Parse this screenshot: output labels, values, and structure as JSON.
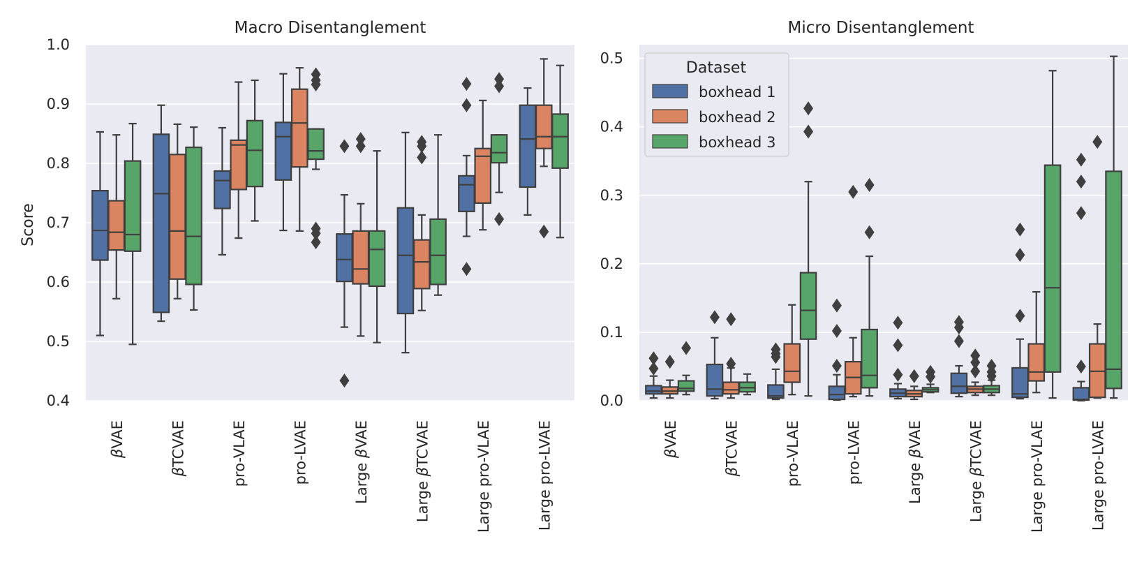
{
  "chart_data": [
    {
      "type": "box",
      "title": "Macro Disentanglement",
      "xlabel": "",
      "ylabel": "Score",
      "ylim": [
        0.4,
        1.0
      ],
      "yticks": [
        "0.4",
        "0.5",
        "0.6",
        "0.7",
        "0.8",
        "0.9",
        "1.0"
      ],
      "grid": true,
      "categories": [
        {
          "prefix": "",
          "greek": "β",
          "suffix": "VAE"
        },
        {
          "prefix": "",
          "greek": "β",
          "suffix": "TCVAE"
        },
        {
          "prefix": "pro-VLAE",
          "greek": "",
          "suffix": ""
        },
        {
          "prefix": "pro-LVAE",
          "greek": "",
          "suffix": ""
        },
        {
          "prefix": "Large ",
          "greek": "β",
          "suffix": "VAE"
        },
        {
          "prefix": "Large ",
          "greek": "β",
          "suffix": "TCVAE"
        },
        {
          "prefix": "Large pro-VLAE",
          "greek": "",
          "suffix": ""
        },
        {
          "prefix": "Large pro-LVAE",
          "greek": "",
          "suffix": ""
        }
      ],
      "series": [
        {
          "name": "boxhead 1",
          "boxes": [
            {
              "whislo": 0.51,
              "q1": 0.637,
              "med": 0.687,
              "q3": 0.754,
              "whishi": 0.853,
              "fliers": []
            },
            {
              "whislo": 0.534,
              "q1": 0.549,
              "med": 0.749,
              "q3": 0.849,
              "whishi": 0.898,
              "fliers": []
            },
            {
              "whislo": 0.646,
              "q1": 0.724,
              "med": 0.771,
              "q3": 0.787,
              "whishi": 0.86,
              "fliers": []
            },
            {
              "whislo": 0.687,
              "q1": 0.772,
              "med": 0.845,
              "q3": 0.869,
              "whishi": 0.951,
              "fliers": []
            },
            {
              "whislo": 0.524,
              "q1": 0.601,
              "med": 0.638,
              "q3": 0.681,
              "whishi": 0.747,
              "fliers": [
                0.829,
                0.434
              ]
            },
            {
              "whislo": 0.481,
              "q1": 0.547,
              "med": 0.645,
              "q3": 0.725,
              "whishi": 0.852,
              "fliers": []
            },
            {
              "whislo": 0.677,
              "q1": 0.719,
              "med": 0.764,
              "q3": 0.779,
              "whishi": 0.813,
              "fliers": [
                0.934,
                0.898,
                0.622
              ]
            },
            {
              "whislo": 0.713,
              "q1": 0.76,
              "med": 0.841,
              "q3": 0.898,
              "whishi": 0.927,
              "fliers": []
            }
          ]
        },
        {
          "name": "boxhead 2",
          "boxes": [
            {
              "whislo": 0.572,
              "q1": 0.654,
              "med": 0.684,
              "q3": 0.737,
              "whishi": 0.848,
              "fliers": []
            },
            {
              "whislo": 0.572,
              "q1": 0.605,
              "med": 0.686,
              "q3": 0.815,
              "whishi": 0.866,
              "fliers": []
            },
            {
              "whislo": 0.674,
              "q1": 0.756,
              "med": 0.831,
              "q3": 0.839,
              "whishi": 0.937,
              "fliers": []
            },
            {
              "whislo": 0.686,
              "q1": 0.794,
              "med": 0.868,
              "q3": 0.925,
              "whishi": 0.961,
              "fliers": []
            },
            {
              "whislo": 0.509,
              "q1": 0.597,
              "med": 0.622,
              "q3": 0.686,
              "whishi": 0.732,
              "fliers": [
                0.841,
                0.829
              ]
            },
            {
              "whislo": 0.552,
              "q1": 0.589,
              "med": 0.634,
              "q3": 0.671,
              "whishi": 0.713,
              "fliers": [
                0.836,
                0.829,
                0.81
              ]
            },
            {
              "whislo": 0.688,
              "q1": 0.733,
              "med": 0.812,
              "q3": 0.825,
              "whishi": 0.906,
              "fliers": []
            },
            {
              "whislo": 0.795,
              "q1": 0.825,
              "med": 0.845,
              "q3": 0.898,
              "whishi": 0.976,
              "fliers": [
                0.685
              ]
            }
          ]
        },
        {
          "name": "boxhead 3",
          "boxes": [
            {
              "whislo": 0.495,
              "q1": 0.652,
              "med": 0.68,
              "q3": 0.804,
              "whishi": 0.867,
              "fliers": []
            },
            {
              "whislo": 0.553,
              "q1": 0.596,
              "med": 0.677,
              "q3": 0.827,
              "whishi": 0.861,
              "fliers": []
            },
            {
              "whislo": 0.703,
              "q1": 0.761,
              "med": 0.822,
              "q3": 0.872,
              "whishi": 0.94,
              "fliers": []
            },
            {
              "whislo": 0.79,
              "q1": 0.807,
              "med": 0.821,
              "q3": 0.858,
              "whishi": 0.858,
              "fliers": [
                0.95,
                0.94,
                0.933,
                0.69,
                0.682,
                0.667
              ]
            },
            {
              "whislo": 0.498,
              "q1": 0.593,
              "med": 0.655,
              "q3": 0.686,
              "whishi": 0.821,
              "fliers": []
            },
            {
              "whislo": 0.578,
              "q1": 0.596,
              "med": 0.645,
              "q3": 0.706,
              "whishi": 0.848,
              "fliers": []
            },
            {
              "whislo": 0.751,
              "q1": 0.801,
              "med": 0.818,
              "q3": 0.848,
              "whishi": 0.848,
              "fliers": [
                0.942,
                0.93,
                0.706
              ]
            },
            {
              "whislo": 0.675,
              "q1": 0.792,
              "med": 0.845,
              "q3": 0.883,
              "whishi": 0.965,
              "fliers": []
            }
          ]
        }
      ]
    },
    {
      "type": "box",
      "title": "Micro Disentanglement",
      "xlabel": "",
      "ylabel": "",
      "ylim": [
        0.0,
        0.52
      ],
      "yticks": [
        "0.0",
        "0.1",
        "0.2",
        "0.3",
        "0.4",
        "0.5"
      ],
      "grid": true,
      "legend": {
        "title": "Dataset",
        "placement": "top-left"
      },
      "categories": [
        {
          "prefix": "",
          "greek": "β",
          "suffix": "VAE"
        },
        {
          "prefix": "",
          "greek": "β",
          "suffix": "TCVAE"
        },
        {
          "prefix": "pro-VLAE",
          "greek": "",
          "suffix": ""
        },
        {
          "prefix": "pro-LVAE",
          "greek": "",
          "suffix": ""
        },
        {
          "prefix": "Large ",
          "greek": "β",
          "suffix": "VAE"
        },
        {
          "prefix": "Large ",
          "greek": "β",
          "suffix": "TCVAE"
        },
        {
          "prefix": "Large pro-VLAE",
          "greek": "",
          "suffix": ""
        },
        {
          "prefix": "Large pro-LVAE",
          "greek": "",
          "suffix": ""
        }
      ],
      "series": [
        {
          "name": "boxhead 1",
          "boxes": [
            {
              "whislo": 0.004,
              "q1": 0.01,
              "med": 0.014,
              "q3": 0.022,
              "whishi": 0.036,
              "fliers": [
                0.062,
                0.047
              ]
            },
            {
              "whislo": 0.003,
              "q1": 0.007,
              "med": 0.017,
              "q3": 0.053,
              "whishi": 0.092,
              "fliers": [
                0.122
              ]
            },
            {
              "whislo": 0.002,
              "q1": 0.004,
              "med": 0.007,
              "q3": 0.023,
              "whishi": 0.046,
              "fliers": [
                0.075,
                0.069,
                0.064
              ]
            },
            {
              "whislo": 0.001,
              "q1": 0.002,
              "med": 0.009,
              "q3": 0.021,
              "whishi": 0.038,
              "fliers": [
                0.139,
                0.102,
                0.051
              ]
            },
            {
              "whislo": 0.003,
              "q1": 0.006,
              "med": 0.011,
              "q3": 0.017,
              "whishi": 0.025,
              "fliers": [
                0.114,
                0.081,
                0.038
              ]
            },
            {
              "whislo": 0.006,
              "q1": 0.011,
              "med": 0.021,
              "q3": 0.04,
              "whishi": 0.051,
              "fliers": [
                0.115,
                0.107,
                0.087
              ]
            },
            {
              "whislo": 0.003,
              "q1": 0.005,
              "med": 0.01,
              "q3": 0.048,
              "whishi": 0.09,
              "fliers": [
                0.25,
                0.213,
                0.124
              ]
            },
            {
              "whislo": 0.0,
              "q1": 0.001,
              "med": 0.002,
              "q3": 0.019,
              "whishi": 0.028,
              "fliers": [
                0.352,
                0.32,
                0.274,
                0.05
              ]
            }
          ]
        },
        {
          "name": "boxhead 2",
          "boxes": [
            {
              "whislo": 0.004,
              "q1": 0.01,
              "med": 0.014,
              "q3": 0.02,
              "whishi": 0.03,
              "fliers": [
                0.057
              ]
            },
            {
              "whislo": 0.004,
              "q1": 0.01,
              "med": 0.016,
              "q3": 0.027,
              "whishi": 0.048,
              "fliers": [
                0.119,
                0.054
              ]
            },
            {
              "whislo": 0.009,
              "q1": 0.027,
              "med": 0.043,
              "q3": 0.083,
              "whishi": 0.14,
              "fliers": []
            },
            {
              "whislo": 0.006,
              "q1": 0.01,
              "med": 0.034,
              "q3": 0.057,
              "whishi": 0.092,
              "fliers": [
                0.305
              ]
            },
            {
              "whislo": 0.002,
              "q1": 0.006,
              "med": 0.01,
              "q3": 0.015,
              "whishi": 0.021,
              "fliers": [
                0.036
              ]
            },
            {
              "whislo": 0.008,
              "q1": 0.012,
              "med": 0.017,
              "q3": 0.021,
              "whishi": 0.027,
              "fliers": [
                0.066,
                0.056,
                0.043
              ]
            },
            {
              "whislo": 0.012,
              "q1": 0.029,
              "med": 0.042,
              "q3": 0.083,
              "whishi": 0.159,
              "fliers": []
            },
            {
              "whislo": 0.004,
              "q1": 0.005,
              "med": 0.043,
              "q3": 0.083,
              "whishi": 0.112,
              "fliers": [
                0.378
              ]
            }
          ]
        },
        {
          "name": "boxhead 3",
          "boxes": [
            {
              "whislo": 0.009,
              "q1": 0.014,
              "med": 0.018,
              "q3": 0.029,
              "whishi": 0.037,
              "fliers": [
                0.077
              ]
            },
            {
              "whislo": 0.009,
              "q1": 0.013,
              "med": 0.019,
              "q3": 0.027,
              "whishi": 0.039,
              "fliers": []
            },
            {
              "whislo": 0.007,
              "q1": 0.09,
              "med": 0.132,
              "q3": 0.187,
              "whishi": 0.32,
              "fliers": [
                0.427,
                0.393
              ]
            },
            {
              "whislo": 0.007,
              "q1": 0.019,
              "med": 0.037,
              "q3": 0.104,
              "whishi": 0.211,
              "fliers": [
                0.315,
                0.246
              ]
            },
            {
              "whislo": 0.012,
              "q1": 0.013,
              "med": 0.016,
              "q3": 0.019,
              "whishi": 0.024,
              "fliers": [
                0.042,
                0.035
              ]
            },
            {
              "whislo": 0.008,
              "q1": 0.012,
              "med": 0.017,
              "q3": 0.022,
              "whishi": 0.03,
              "fliers": [
                0.051,
                0.042,
                0.036
              ]
            },
            {
              "whislo": 0.004,
              "q1": 0.042,
              "med": 0.165,
              "q3": 0.344,
              "whishi": 0.482,
              "fliers": []
            },
            {
              "whislo": 0.004,
              "q1": 0.018,
              "med": 0.046,
              "q3": 0.335,
              "whishi": 0.503,
              "fliers": []
            }
          ]
        }
      ]
    }
  ],
  "colors": {
    "boxhead 1": "#5171a5",
    "boxhead 2": "#db8462",
    "boxhead 3": "#58a56a",
    "axes_background": "#eaeaf2",
    "grid": "#ffffff",
    "line": "#3f3f3f"
  }
}
